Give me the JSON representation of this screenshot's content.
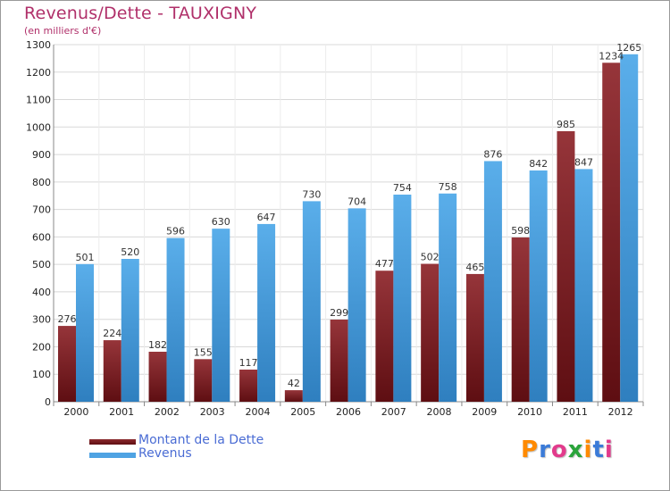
{
  "colors": {
    "dette": "#8c2a2e",
    "revenus": "#4fa3e3",
    "title": "#b0306a",
    "legend_text": "#4a6cd4"
  },
  "logo": {
    "text": "Proxiti",
    "letter_colors": [
      "#ff8a00",
      "#3b7bd8",
      "#e23b8c",
      "#2aa43b",
      "#ff8a00",
      "#3b7bd8",
      "#e23b8c"
    ]
  },
  "chart_data": {
    "type": "bar",
    "title": "Revenus/Dette - TAUXIGNY",
    "subtitle": "(en milliers d'€)",
    "xlabel": "",
    "ylabel": "",
    "ylim": [
      0,
      1300
    ],
    "yticks": [
      0,
      100,
      200,
      300,
      400,
      500,
      600,
      700,
      800,
      900,
      1000,
      1100,
      1200,
      1300
    ],
    "categories": [
      "2000",
      "2001",
      "2002",
      "2003",
      "2004",
      "2005",
      "2006",
      "2007",
      "2008",
      "2009",
      "2010",
      "2011",
      "2012"
    ],
    "series": [
      {
        "name": "Montant de la Dette",
        "values": [
          276,
          224,
          182,
          155,
          117,
          42,
          299,
          477,
          502,
          465,
          598,
          985,
          1234
        ]
      },
      {
        "name": "Revenus",
        "values": [
          501,
          520,
          596,
          630,
          647,
          730,
          704,
          754,
          758,
          876,
          842,
          847,
          1265
        ]
      }
    ],
    "grid": true,
    "legend": "bottom-left"
  }
}
